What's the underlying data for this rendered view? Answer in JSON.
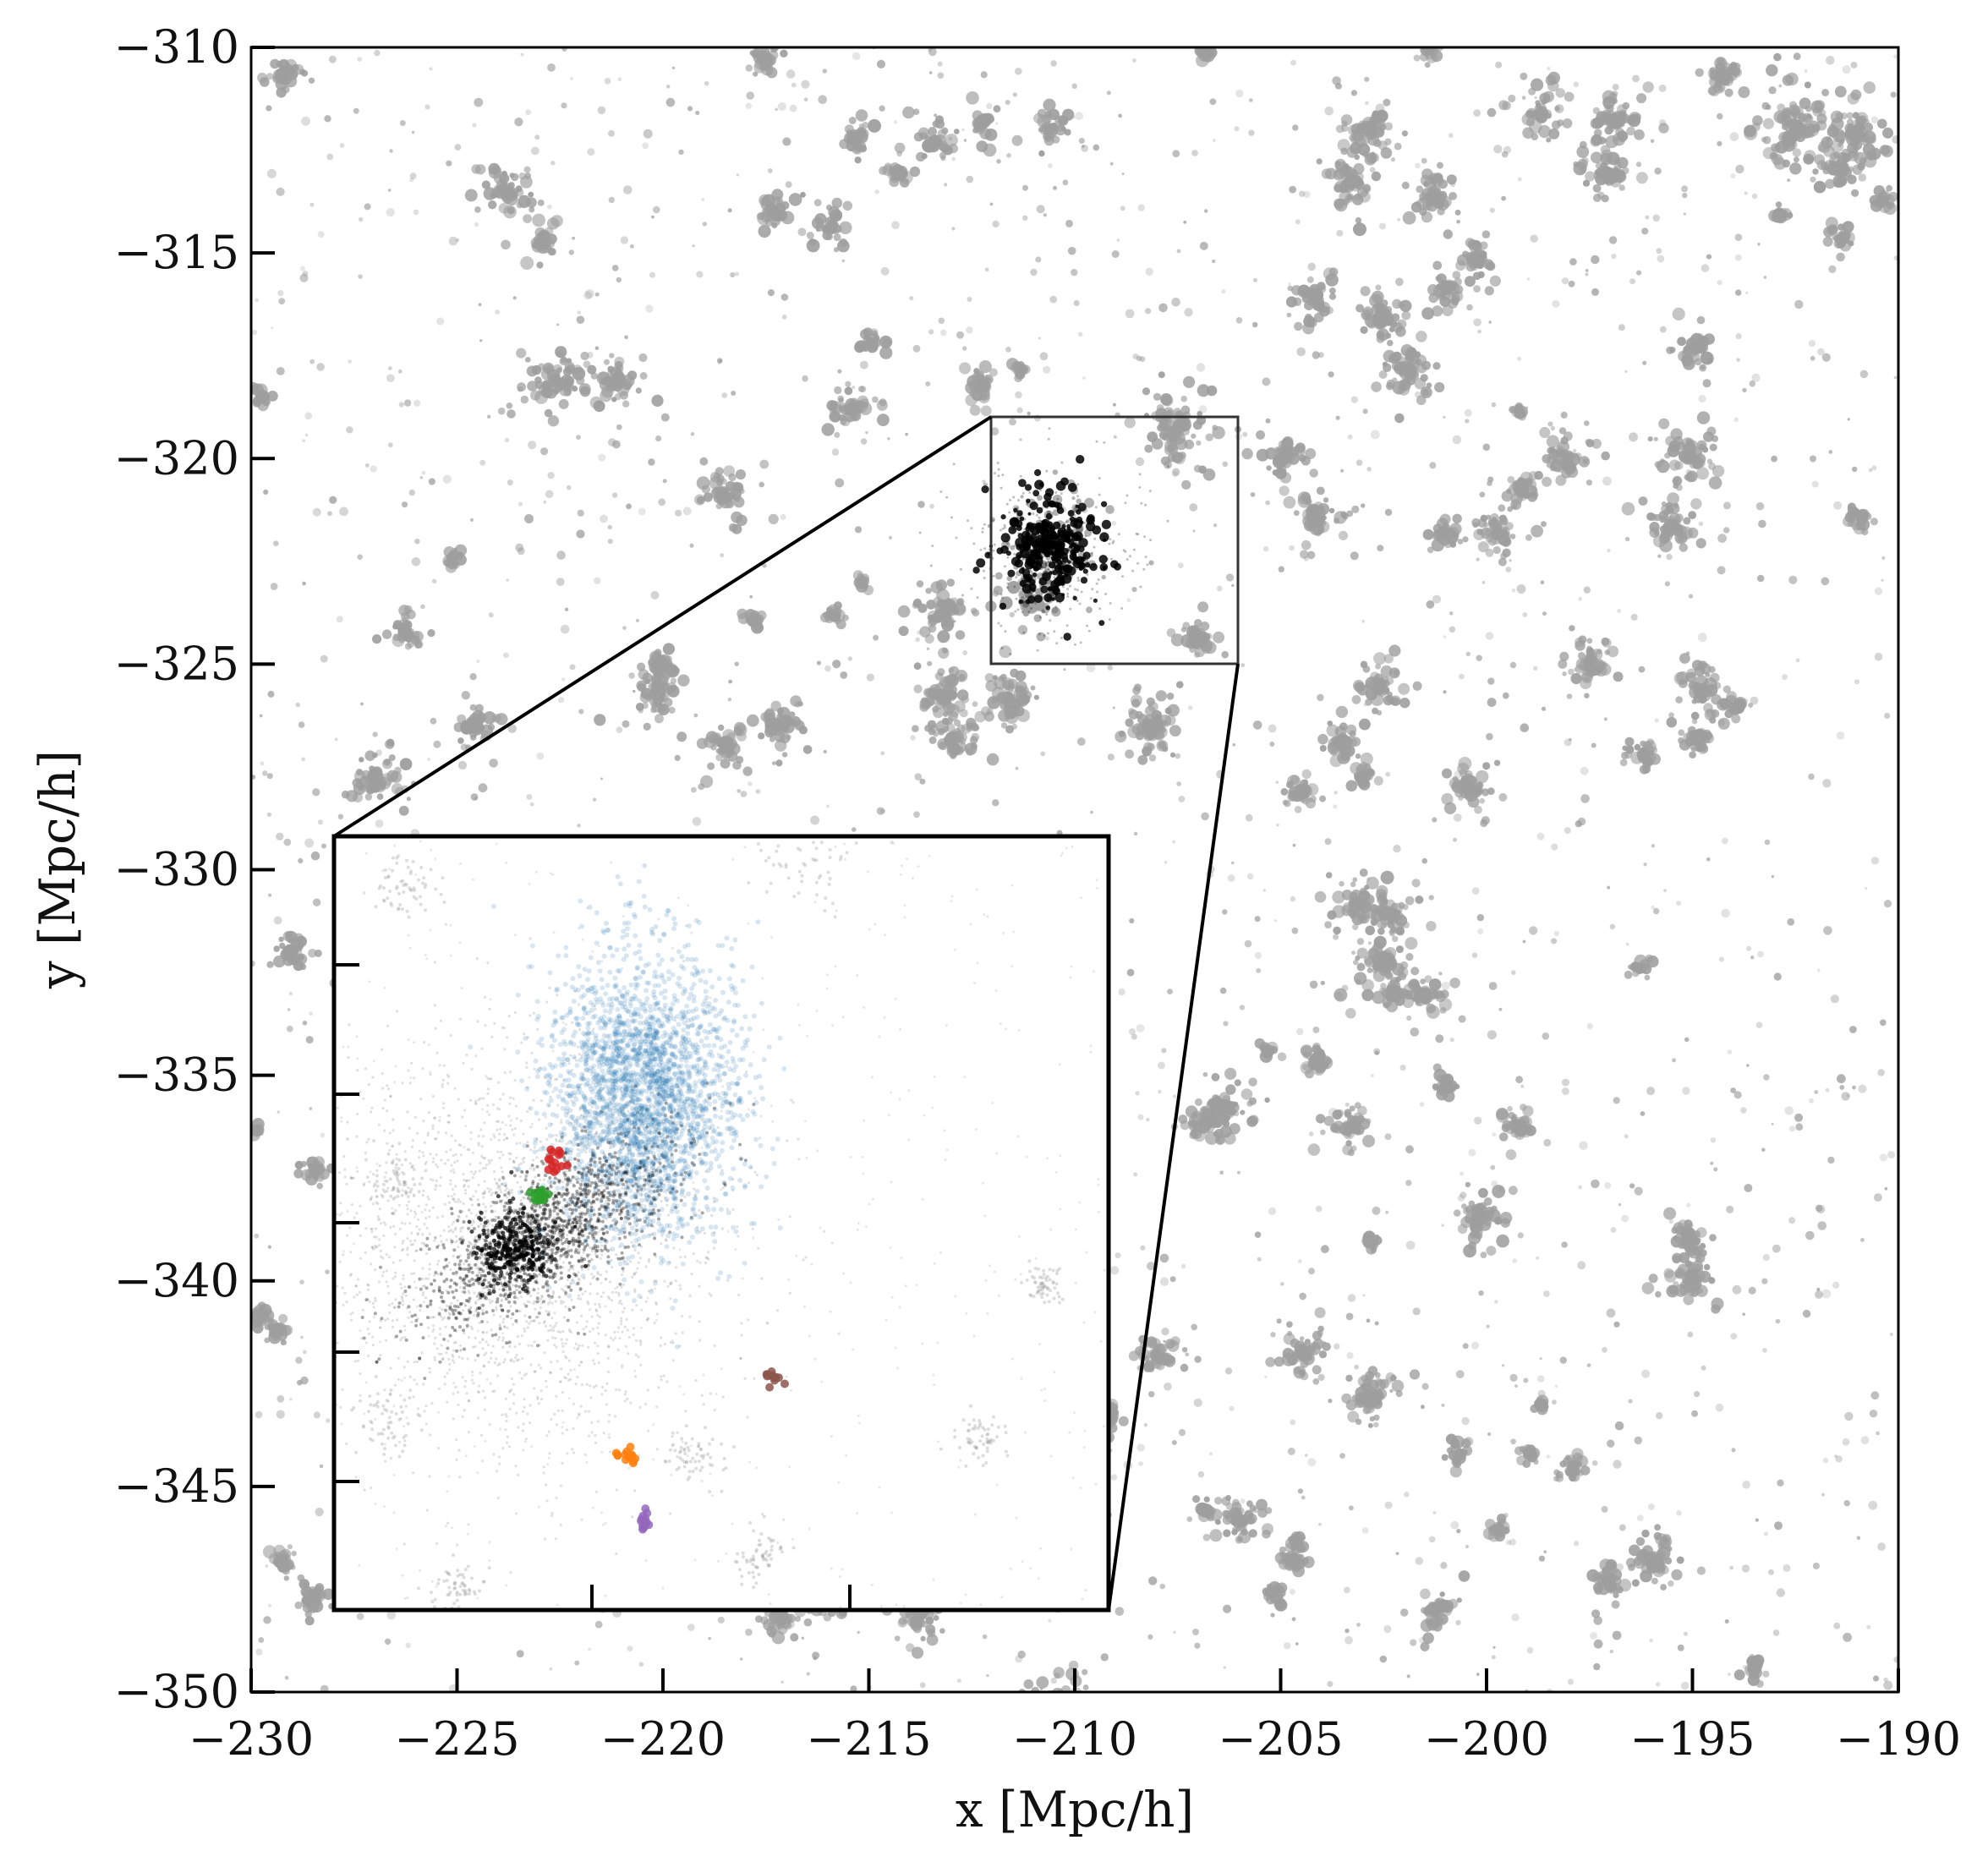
{
  "chart_data": {
    "type": "scatter",
    "xlabel": "x [Mpc/h]",
    "ylabel": "y [Mpc/h]",
    "xlim": [
      -230,
      -190
    ],
    "ylim": [
      -350,
      -310
    ],
    "x_ticks": [
      -230,
      -225,
      -220,
      -215,
      -210,
      -205,
      -200,
      -195,
      -190
    ],
    "x_tick_labels": [
      "−230",
      "−225",
      "−220",
      "−215",
      "−210",
      "−205",
      "−200",
      "−195",
      "−190"
    ],
    "y_ticks": [
      -310,
      -315,
      -320,
      -325,
      -330,
      -335,
      -340,
      -345,
      -350
    ],
    "y_tick_labels": [
      "−310",
      "−315",
      "−320",
      "−325",
      "−330",
      "−335",
      "−340",
      "−345",
      "−350"
    ],
    "background_particles": {
      "color": "#9e9e9e"
    },
    "zoom_region": {
      "xlim": [
        -212,
        -206
      ],
      "ylim": [
        -325,
        -319
      ]
    },
    "inset": {
      "xlim": [
        -212,
        -206
      ],
      "ylim": [
        -325,
        -319
      ],
      "halo_particles": {
        "color": "#000000",
        "center": [
          -210.6,
          -322.2
        ]
      },
      "groups": [
        {
          "color": "#1f77b4",
          "center": [
            -209.6,
            -321.0
          ],
          "spread": [
            0.35,
            0.55
          ]
        },
        {
          "color": "#d62728",
          "center": [
            -210.3,
            -321.5
          ],
          "spread": [
            0.05,
            0.05
          ]
        },
        {
          "color": "#2ca02c",
          "center": [
            -210.4,
            -321.8
          ],
          "spread": [
            0.03,
            0.03
          ]
        },
        {
          "color": "#ff7f0e",
          "center": [
            -209.7,
            -323.8
          ],
          "spread": [
            0.05,
            0.04
          ]
        },
        {
          "color": "#9467bd",
          "center": [
            -209.6,
            -324.3
          ],
          "spread": [
            0.02,
            0.05
          ]
        },
        {
          "color": "#8c564b",
          "center": [
            -208.6,
            -323.2
          ],
          "spread": [
            0.04,
            0.03
          ]
        }
      ]
    }
  }
}
